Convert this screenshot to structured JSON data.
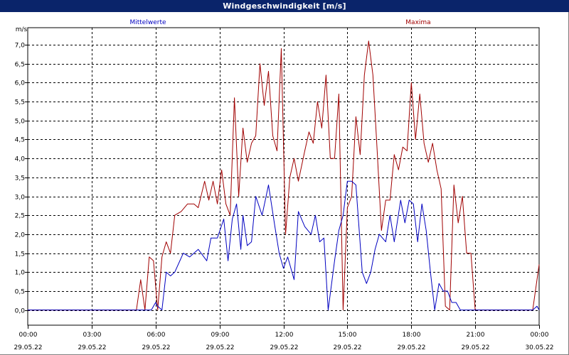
{
  "window": {
    "title": "Windgeschwindigkeit [m/s]"
  },
  "chart_data": {
    "type": "line",
    "title": "Windgeschwindigkeit [m/s]",
    "ylabel": "m/s",
    "xlabel": "",
    "ylim": [
      -0.4,
      7.45
    ],
    "xlim_hours": [
      0,
      24
    ],
    "grid": true,
    "legend_placement": "top",
    "colors": {
      "Mittelwerte": "#0000c0",
      "Maxima": "#a00000"
    },
    "y_ticks": [
      "0,0",
      "0,5",
      "1,0",
      "1,5",
      "2,0",
      "2,5",
      "3,0",
      "3,5",
      "4,0",
      "4,5",
      "5,0",
      "5,5",
      "6,0",
      "6,5",
      "7,0"
    ],
    "x_ticks": [
      {
        "time": "00:00",
        "date": "29.05.22"
      },
      {
        "time": "03:00",
        "date": "29.05.22"
      },
      {
        "time": "06:00",
        "date": "29.05.22"
      },
      {
        "time": "09:00",
        "date": "29.05.22"
      },
      {
        "time": "12:00",
        "date": "29.05.22"
      },
      {
        "time": "15:00",
        "date": "29.05.22"
      },
      {
        "time": "18:00",
        "date": "29.05.22"
      },
      {
        "time": "21:00",
        "date": "29.05.22"
      },
      {
        "time": "00:00",
        "date": "30.05.22"
      }
    ],
    "series": [
      {
        "name": "Mittelwerte",
        "color": "#0000c0",
        "x_hours": [
          0,
          5.8,
          6.0,
          6.1,
          6.3,
          6.5,
          6.7,
          6.9,
          7.3,
          7.6,
          8.0,
          8.4,
          8.6,
          8.8,
          8.9,
          9.2,
          9.4,
          9.6,
          9.8,
          10.0,
          10.1,
          10.3,
          10.5,
          10.7,
          11.0,
          11.3,
          11.6,
          11.8,
          12.0,
          12.2,
          12.5,
          12.7,
          13.0,
          13.3,
          13.5,
          13.7,
          13.9,
          14.1,
          14.4,
          14.6,
          14.8,
          15.0,
          15.2,
          15.4,
          15.7,
          15.9,
          16.1,
          16.3,
          16.5,
          16.8,
          17.0,
          17.2,
          17.5,
          17.7,
          17.9,
          18.1,
          18.3,
          18.5,
          18.7,
          18.9,
          19.1,
          19.3,
          19.5,
          19.7,
          19.9,
          20.1,
          20.3,
          20.5,
          20.6,
          23.7,
          23.9,
          24.0
        ],
        "y": [
          0,
          0,
          0.2,
          0.1,
          0.0,
          1.0,
          0.9,
          1.0,
          1.5,
          1.4,
          1.6,
          1.3,
          1.9,
          1.9,
          1.9,
          2.4,
          1.3,
          2.4,
          2.8,
          1.6,
          2.5,
          1.7,
          1.8,
          3.0,
          2.5,
          3.3,
          2.2,
          1.5,
          1.1,
          1.4,
          0.8,
          2.6,
          2.2,
          2.0,
          2.5,
          1.8,
          1.9,
          0.0,
          1.3,
          2.1,
          2.5,
          3.4,
          3.4,
          3.3,
          1.0,
          0.7,
          1.0,
          1.6,
          2.0,
          1.8,
          2.5,
          1.8,
          2.9,
          2.3,
          2.9,
          2.8,
          1.8,
          2.8,
          2.1,
          1.0,
          0.0,
          0.7,
          0.5,
          0.5,
          0.2,
          0.2,
          0.0,
          0.0,
          0.0,
          0.0,
          0.1,
          0.0
        ]
      },
      {
        "name": "Maxima",
        "color": "#a00000",
        "x_hours": [
          0,
          5.1,
          5.3,
          5.5,
          5.7,
          5.9,
          6.1,
          6.3,
          6.5,
          6.7,
          6.9,
          7.2,
          7.5,
          7.8,
          8.0,
          8.3,
          8.5,
          8.7,
          8.9,
          9.1,
          9.3,
          9.5,
          9.7,
          9.9,
          10.1,
          10.3,
          10.5,
          10.7,
          10.9,
          11.1,
          11.3,
          11.5,
          11.7,
          11.9,
          12.1,
          12.3,
          12.5,
          12.7,
          13.0,
          13.2,
          13.4,
          13.6,
          13.8,
          14.0,
          14.2,
          14.4,
          14.6,
          14.8,
          15.0,
          15.2,
          15.4,
          15.6,
          15.8,
          16.0,
          16.2,
          16.4,
          16.6,
          16.8,
          17.0,
          17.2,
          17.4,
          17.6,
          17.8,
          18.0,
          18.2,
          18.4,
          18.6,
          18.8,
          19.0,
          19.2,
          19.4,
          19.6,
          19.8,
          20.0,
          20.2,
          20.4,
          20.6,
          20.8,
          21.0,
          23.7,
          24.0
        ],
        "y": [
          0,
          0,
          0.8,
          0.0,
          1.4,
          1.3,
          0.0,
          1.4,
          1.8,
          1.5,
          2.5,
          2.6,
          2.8,
          2.8,
          2.7,
          3.4,
          2.9,
          3.4,
          2.8,
          3.7,
          2.8,
          2.5,
          5.6,
          3.0,
          4.8,
          3.9,
          4.4,
          4.6,
          6.5,
          5.4,
          6.3,
          4.6,
          4.2,
          6.9,
          2.0,
          3.5,
          4.0,
          3.4,
          4.2,
          4.7,
          4.4,
          5.5,
          4.8,
          6.2,
          4.0,
          4.0,
          5.7,
          0.0,
          2.7,
          3.0,
          5.1,
          4.1,
          6.2,
          7.1,
          6.2,
          4.2,
          2.1,
          2.9,
          2.9,
          4.1,
          3.7,
          4.3,
          4.2,
          6.0,
          4.5,
          5.7,
          4.4,
          3.9,
          4.4,
          3.7,
          3.2,
          0.1,
          0.0,
          3.3,
          2.3,
          3.0,
          1.5,
          1.5,
          0.0,
          0.0,
          1.2
        ]
      }
    ]
  }
}
